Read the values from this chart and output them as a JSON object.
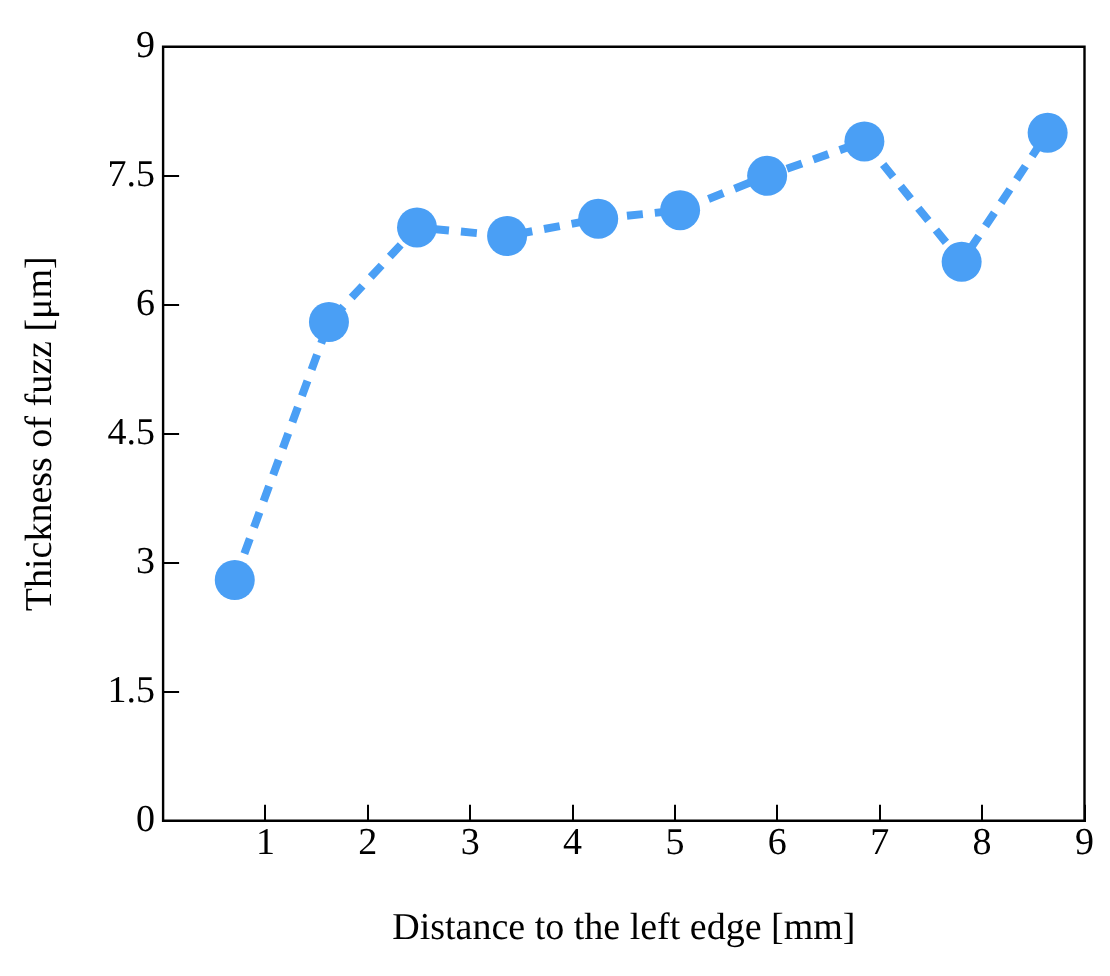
{
  "chart_data": {
    "type": "line",
    "xlabel": "Distance to the left edge [mm]",
    "ylabel": "Thickness of fuzz [μm]",
    "series": [
      {
        "color": "#4a9ff5",
        "x": [
          0.7,
          1.62,
          2.48,
          3.36,
          4.25,
          5.05,
          5.9,
          6.85,
          7.8,
          8.64
        ],
        "values": [
          2.8,
          5.8,
          6.9,
          6.8,
          7.0,
          7.1,
          7.5,
          7.9,
          6.5,
          8.0
        ]
      }
    ],
    "xlim": [
      0,
      9
    ],
    "xticks": [
      {
        "value": 0,
        "label": null
      },
      1,
      2,
      3,
      4,
      5,
      6,
      7,
      8,
      9
    ],
    "ylim": [
      0,
      9
    ],
    "yticks": [
      0,
      1.5,
      3,
      4.5,
      6,
      7.5,
      9
    ],
    "grid": false,
    "legend": false,
    "marker": "circle",
    "line_style": "dashed"
  }
}
